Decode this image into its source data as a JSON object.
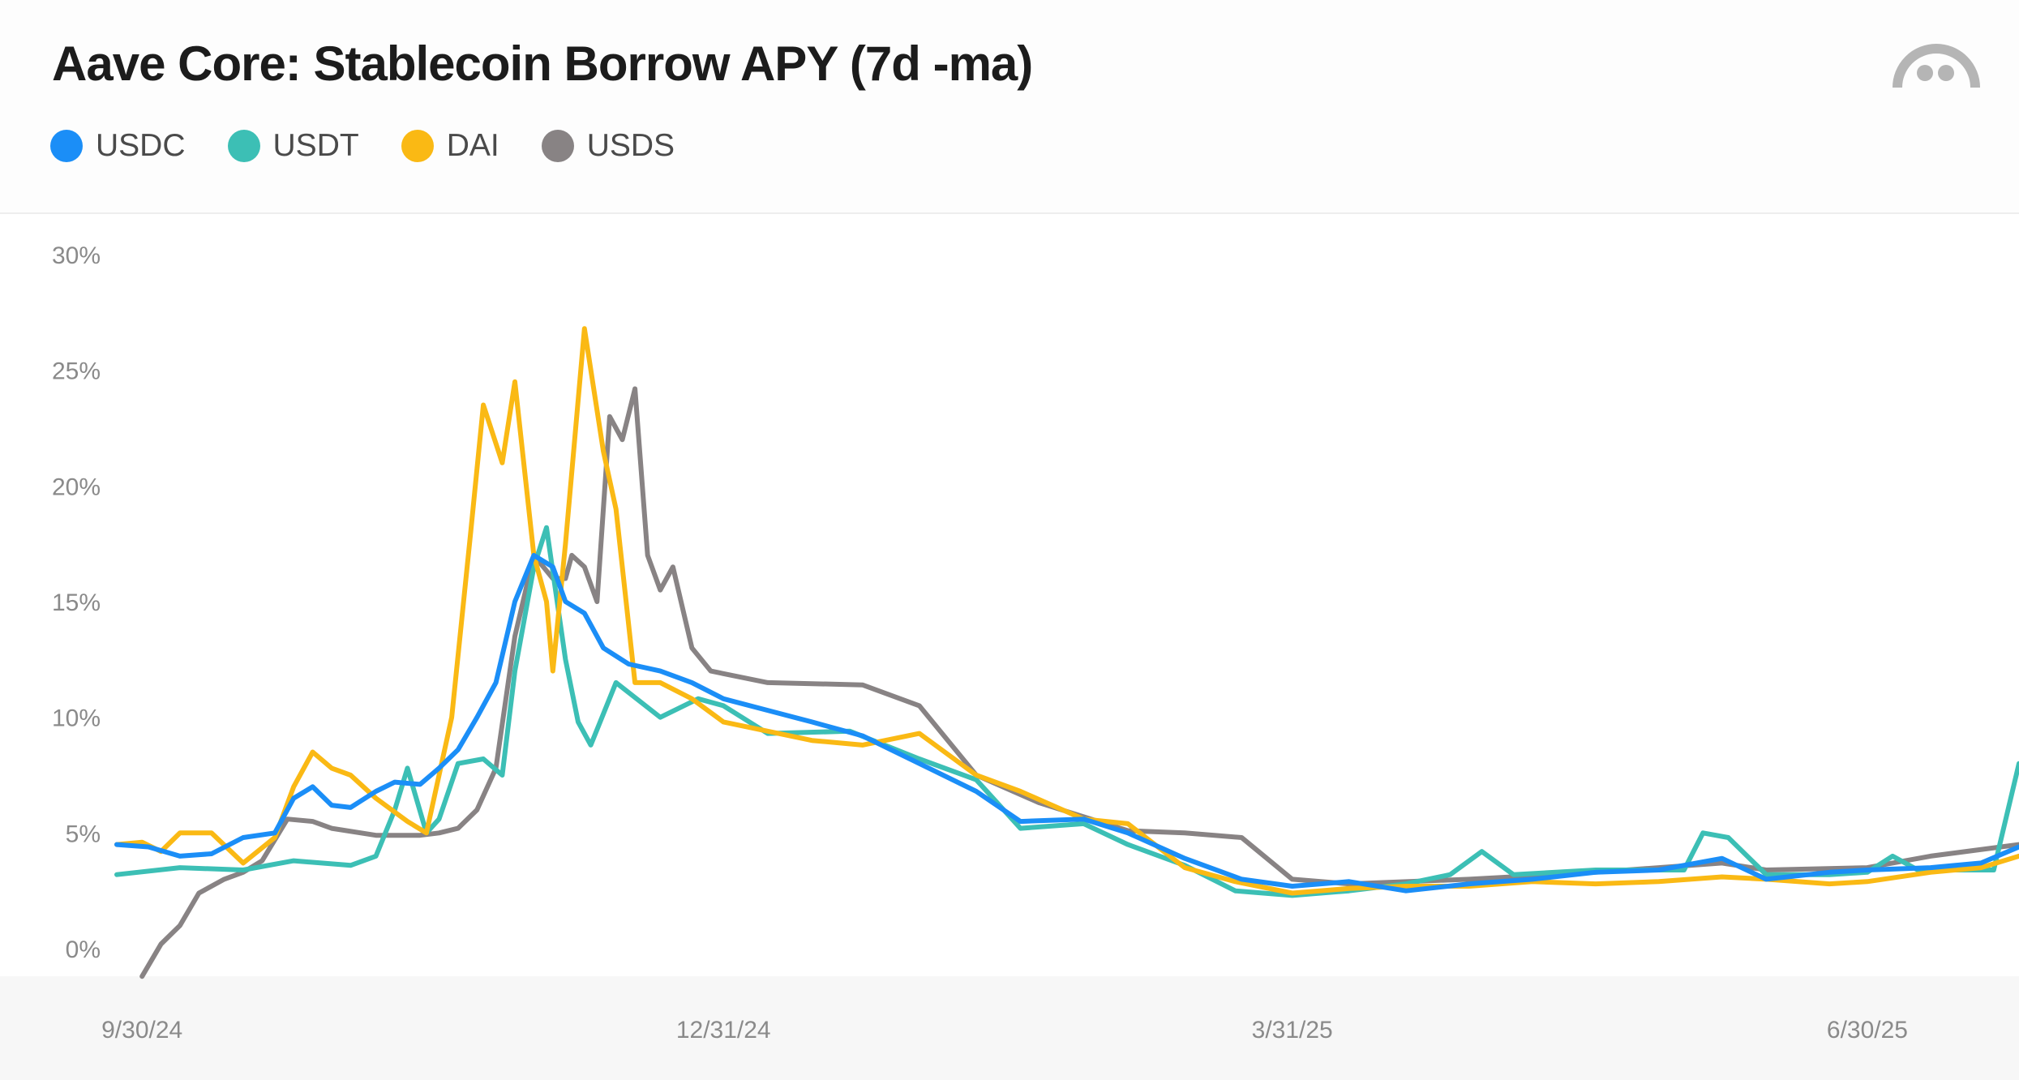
{
  "title": "Aave Core: Stablecoin Borrow APY (7d -ma)",
  "logo": {
    "icon": "dune-logo-icon",
    "color": "#b5b5b5"
  },
  "chart_data": {
    "type": "line",
    "title": "Aave Core: Stablecoin Borrow APY (7d -ma)",
    "xlabel": "",
    "ylabel": "",
    "x_range": [
      "2024-09-26",
      "2025-07-24"
    ],
    "ylim": [
      -1.2,
      30
    ],
    "y_ticks": [
      {
        "value": 0,
        "label": "0%"
      },
      {
        "value": 5,
        "label": "5%"
      },
      {
        "value": 10,
        "label": "10%"
      },
      {
        "value": 15,
        "label": "15%"
      },
      {
        "value": 20,
        "label": "20%"
      },
      {
        "value": 25,
        "label": "25%"
      },
      {
        "value": 30,
        "label": "30%"
      }
    ],
    "x_ticks": [
      {
        "date": "2024-09-30",
        "label": "9/30/24"
      },
      {
        "date": "2024-12-31",
        "label": "12/31/24"
      },
      {
        "date": "2025-03-31",
        "label": "3/31/25"
      },
      {
        "date": "2025-06-30",
        "label": "6/30/25"
      }
    ],
    "grid": false,
    "legend_position": "top-left",
    "series": [
      {
        "name": "USDC",
        "color": "#1b8ef7",
        "points": [
          [
            "2024-09-26",
            4.5
          ],
          [
            "2024-10-01",
            4.4
          ],
          [
            "2024-10-06",
            4.0
          ],
          [
            "2024-10-11",
            4.1
          ],
          [
            "2024-10-16",
            4.8
          ],
          [
            "2024-10-21",
            5.0
          ],
          [
            "2024-10-24",
            6.5
          ],
          [
            "2024-10-27",
            7.0
          ],
          [
            "2024-10-30",
            6.2
          ],
          [
            "2024-11-02",
            6.1
          ],
          [
            "2024-11-06",
            6.8
          ],
          [
            "2024-11-09",
            7.2
          ],
          [
            "2024-11-13",
            7.1
          ],
          [
            "2024-11-16",
            7.8
          ],
          [
            "2024-11-19",
            8.6
          ],
          [
            "2024-11-22",
            10.0
          ],
          [
            "2024-11-25",
            11.5
          ],
          [
            "2024-11-28",
            15.0
          ],
          [
            "2024-12-01",
            17.0
          ],
          [
            "2024-12-04",
            16.5
          ],
          [
            "2024-12-06",
            15.0
          ],
          [
            "2024-12-09",
            14.5
          ],
          [
            "2024-12-12",
            13.0
          ],
          [
            "2024-12-16",
            12.3
          ],
          [
            "2024-12-21",
            12.0
          ],
          [
            "2024-12-26",
            11.5
          ],
          [
            "2024-12-31",
            10.8
          ],
          [
            "2025-01-07",
            10.3
          ],
          [
            "2025-01-14",
            9.8
          ],
          [
            "2025-01-22",
            9.2
          ],
          [
            "2025-01-31",
            8.0
          ],
          [
            "2025-02-09",
            6.8
          ],
          [
            "2025-02-16",
            5.5
          ],
          [
            "2025-02-26",
            5.6
          ],
          [
            "2025-03-05",
            5.0
          ],
          [
            "2025-03-14",
            3.9
          ],
          [
            "2025-03-23",
            3.0
          ],
          [
            "2025-03-31",
            2.7
          ],
          [
            "2025-04-09",
            2.9
          ],
          [
            "2025-04-18",
            2.5
          ],
          [
            "2025-04-28",
            2.8
          ],
          [
            "2025-05-08",
            3.0
          ],
          [
            "2025-05-18",
            3.3
          ],
          [
            "2025-05-28",
            3.4
          ],
          [
            "2025-06-07",
            3.9
          ],
          [
            "2025-06-14",
            3.0
          ],
          [
            "2025-06-24",
            3.3
          ],
          [
            "2025-06-30",
            3.4
          ],
          [
            "2025-07-10",
            3.5
          ],
          [
            "2025-07-18",
            3.7
          ],
          [
            "2025-07-24",
            4.4
          ]
        ]
      },
      {
        "name": "USDT",
        "color": "#3cbfb5",
        "points": [
          [
            "2024-09-26",
            3.2
          ],
          [
            "2024-10-06",
            3.5
          ],
          [
            "2024-10-16",
            3.4
          ],
          [
            "2024-10-24",
            3.8
          ],
          [
            "2024-11-02",
            3.6
          ],
          [
            "2024-11-06",
            4.0
          ],
          [
            "2024-11-09",
            6.0
          ],
          [
            "2024-11-11",
            7.8
          ],
          [
            "2024-11-14",
            5.0
          ],
          [
            "2024-11-16",
            5.6
          ],
          [
            "2024-11-19",
            8.0
          ],
          [
            "2024-11-23",
            8.2
          ],
          [
            "2024-11-26",
            7.5
          ],
          [
            "2024-11-28",
            12.0
          ],
          [
            "2024-12-01",
            16.5
          ],
          [
            "2024-12-03",
            18.2
          ],
          [
            "2024-12-06",
            12.5
          ],
          [
            "2024-12-08",
            9.8
          ],
          [
            "2024-12-10",
            8.8
          ],
          [
            "2024-12-14",
            11.5
          ],
          [
            "2024-12-21",
            10.0
          ],
          [
            "2024-12-27",
            10.8
          ],
          [
            "2024-12-31",
            10.5
          ],
          [
            "2025-01-07",
            9.3
          ],
          [
            "2025-01-20",
            9.4
          ],
          [
            "2025-01-31",
            8.2
          ],
          [
            "2025-02-09",
            7.3
          ],
          [
            "2025-02-16",
            5.2
          ],
          [
            "2025-02-26",
            5.4
          ],
          [
            "2025-03-05",
            4.5
          ],
          [
            "2025-03-14",
            3.6
          ],
          [
            "2025-03-22",
            2.5
          ],
          [
            "2025-03-31",
            2.3
          ],
          [
            "2025-04-09",
            2.5
          ],
          [
            "2025-04-18",
            2.8
          ],
          [
            "2025-04-25",
            3.2
          ],
          [
            "2025-04-30",
            4.2
          ],
          [
            "2025-05-05",
            3.2
          ],
          [
            "2025-05-18",
            3.4
          ],
          [
            "2025-06-01",
            3.4
          ],
          [
            "2025-06-04",
            5.0
          ],
          [
            "2025-06-08",
            4.8
          ],
          [
            "2025-06-14",
            3.2
          ],
          [
            "2025-06-24",
            3.2
          ],
          [
            "2025-06-30",
            3.3
          ],
          [
            "2025-07-04",
            4.0
          ],
          [
            "2025-07-08",
            3.4
          ],
          [
            "2025-07-20",
            3.4
          ],
          [
            "2025-07-24",
            8.0
          ]
        ]
      },
      {
        "name": "DAI",
        "color": "#fab914",
        "points": [
          [
            "2024-09-26",
            4.5
          ],
          [
            "2024-09-30",
            4.6
          ],
          [
            "2024-10-03",
            4.2
          ],
          [
            "2024-10-06",
            5.0
          ],
          [
            "2024-10-11",
            5.0
          ],
          [
            "2024-10-16",
            3.7
          ],
          [
            "2024-10-21",
            4.8
          ],
          [
            "2024-10-24",
            7.0
          ],
          [
            "2024-10-27",
            8.5
          ],
          [
            "2024-10-30",
            7.8
          ],
          [
            "2024-11-02",
            7.5
          ],
          [
            "2024-11-06",
            6.5
          ],
          [
            "2024-11-11",
            5.5
          ],
          [
            "2024-11-14",
            5.0
          ],
          [
            "2024-11-18",
            10.0
          ],
          [
            "2024-11-21",
            18.0
          ],
          [
            "2024-11-23",
            23.5
          ],
          [
            "2024-11-26",
            21.0
          ],
          [
            "2024-11-28",
            24.5
          ],
          [
            "2024-12-01",
            17.0
          ],
          [
            "2024-12-03",
            15.0
          ],
          [
            "2024-12-04",
            12.0
          ],
          [
            "2024-12-06",
            17.5
          ],
          [
            "2024-12-09",
            26.8
          ],
          [
            "2024-12-12",
            21.5
          ],
          [
            "2024-12-14",
            19.0
          ],
          [
            "2024-12-17",
            11.5
          ],
          [
            "2024-12-21",
            11.5
          ],
          [
            "2024-12-26",
            10.8
          ],
          [
            "2024-12-31",
            9.8
          ],
          [
            "2025-01-07",
            9.4
          ],
          [
            "2025-01-14",
            9.0
          ],
          [
            "2025-01-22",
            8.8
          ],
          [
            "2025-01-31",
            9.3
          ],
          [
            "2025-02-09",
            7.5
          ],
          [
            "2025-02-16",
            6.8
          ],
          [
            "2025-02-26",
            5.6
          ],
          [
            "2025-03-05",
            5.4
          ],
          [
            "2025-03-14",
            3.5
          ],
          [
            "2025-03-22",
            2.9
          ],
          [
            "2025-03-31",
            2.4
          ],
          [
            "2025-04-09",
            2.6
          ],
          [
            "2025-04-18",
            2.7
          ],
          [
            "2025-04-28",
            2.7
          ],
          [
            "2025-05-08",
            2.9
          ],
          [
            "2025-05-18",
            2.8
          ],
          [
            "2025-05-28",
            2.9
          ],
          [
            "2025-06-07",
            3.1
          ],
          [
            "2025-06-14",
            3.0
          ],
          [
            "2025-06-24",
            2.8
          ],
          [
            "2025-06-30",
            2.9
          ],
          [
            "2025-07-10",
            3.3
          ],
          [
            "2025-07-18",
            3.5
          ],
          [
            "2025-07-24",
            4.0
          ]
        ]
      },
      {
        "name": "USDS",
        "color": "#888384",
        "points": [
          [
            "2024-09-30",
            -1.2
          ],
          [
            "2024-10-03",
            0.2
          ],
          [
            "2024-10-06",
            1.0
          ],
          [
            "2024-10-09",
            2.4
          ],
          [
            "2024-10-13",
            3.0
          ],
          [
            "2024-10-16",
            3.3
          ],
          [
            "2024-10-19",
            3.8
          ],
          [
            "2024-10-23",
            5.6
          ],
          [
            "2024-10-27",
            5.5
          ],
          [
            "2024-10-30",
            5.2
          ],
          [
            "2024-11-06",
            4.9
          ],
          [
            "2024-11-13",
            4.9
          ],
          [
            "2024-11-16",
            5.0
          ],
          [
            "2024-11-19",
            5.2
          ],
          [
            "2024-11-22",
            6.0
          ],
          [
            "2024-11-25",
            7.8
          ],
          [
            "2024-11-28",
            13.5
          ],
          [
            "2024-12-01",
            17.0
          ],
          [
            "2024-12-04",
            16.0
          ],
          [
            "2024-12-06",
            16.0
          ],
          [
            "2024-12-07",
            17.0
          ],
          [
            "2024-12-09",
            16.5
          ],
          [
            "2024-12-11",
            15.0
          ],
          [
            "2024-12-13",
            23.0
          ],
          [
            "2024-12-15",
            22.0
          ],
          [
            "2024-12-17",
            24.2
          ],
          [
            "2024-12-19",
            17.0
          ],
          [
            "2024-12-21",
            15.5
          ],
          [
            "2024-12-23",
            16.5
          ],
          [
            "2024-12-26",
            13.0
          ],
          [
            "2024-12-29",
            12.0
          ],
          [
            "2025-01-07",
            11.5
          ],
          [
            "2025-01-22",
            11.4
          ],
          [
            "2025-01-31",
            10.5
          ],
          [
            "2025-02-09",
            7.5
          ],
          [
            "2025-02-19",
            6.3
          ],
          [
            "2025-03-05",
            5.1
          ],
          [
            "2025-03-14",
            5.0
          ],
          [
            "2025-03-23",
            4.8
          ],
          [
            "2025-03-31",
            3.0
          ],
          [
            "2025-04-09",
            2.8
          ],
          [
            "2025-04-28",
            3.0
          ],
          [
            "2025-05-18",
            3.3
          ],
          [
            "2025-06-07",
            3.7
          ],
          [
            "2025-06-14",
            3.4
          ],
          [
            "2025-06-30",
            3.5
          ],
          [
            "2025-07-10",
            4.0
          ],
          [
            "2025-07-24",
            4.5
          ]
        ]
      }
    ]
  }
}
